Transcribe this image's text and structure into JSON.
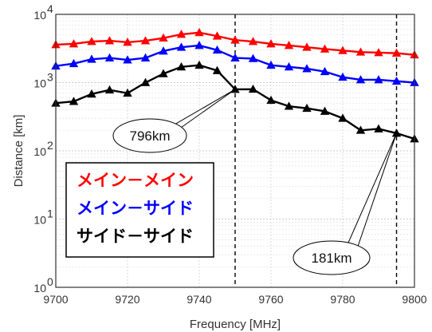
{
  "chart_data": {
    "type": "line",
    "xlabel": "Frequency [MHz]",
    "ylabel": "Distance [km]",
    "xlim": [
      9700,
      9800
    ],
    "ylim": [
      1,
      10000
    ],
    "yscale": "log",
    "x_ticks": [
      "9700",
      "9720",
      "9740",
      "9760",
      "9780",
      "9800"
    ],
    "y_ticks": [
      {
        "base": "10",
        "exp": "0"
      },
      {
        "base": "10",
        "exp": "1"
      },
      {
        "base": "10",
        "exp": "2"
      },
      {
        "base": "10",
        "exp": "3"
      },
      {
        "base": "10",
        "exp": "4"
      }
    ],
    "grid": true,
    "legend_position": "lower-left",
    "marker": "triangle",
    "x": [
      9700,
      9705,
      9710,
      9715,
      9720,
      9725,
      9730,
      9735,
      9740,
      9745,
      9750,
      9755,
      9760,
      9765,
      9770,
      9775,
      9780,
      9785,
      9790,
      9795,
      9800
    ],
    "series": [
      {
        "name": "メイン－メイン",
        "color": "#ff0000",
        "values": [
          3600,
          3700,
          4000,
          4100,
          3900,
          4100,
          4500,
          5100,
          5400,
          4800,
          4200,
          4000,
          3700,
          3500,
          3300,
          3100,
          2950,
          2800,
          2750,
          2700,
          2550
        ]
      },
      {
        "name": "メイン－サイド",
        "color": "#0000ff",
        "values": [
          1750,
          1900,
          2200,
          2300,
          2150,
          2300,
          2900,
          3300,
          3500,
          3000,
          2300,
          2250,
          1800,
          1700,
          1600,
          1450,
          1200,
          1100,
          1100,
          1050,
          1000
        ]
      },
      {
        "name": "サイド－サイド",
        "color": "#000000",
        "values": [
          500,
          530,
          680,
          780,
          700,
          1000,
          1350,
          1700,
          1800,
          1500,
          796,
          800,
          550,
          450,
          420,
          380,
          300,
          200,
          210,
          181,
          150
        ]
      }
    ],
    "reference_lines": [
      9750,
      9795
    ],
    "annotations": [
      {
        "text": "796km",
        "x": 9750,
        "y": 796
      },
      {
        "text": "181km",
        "x": 9795,
        "y": 181
      }
    ]
  }
}
